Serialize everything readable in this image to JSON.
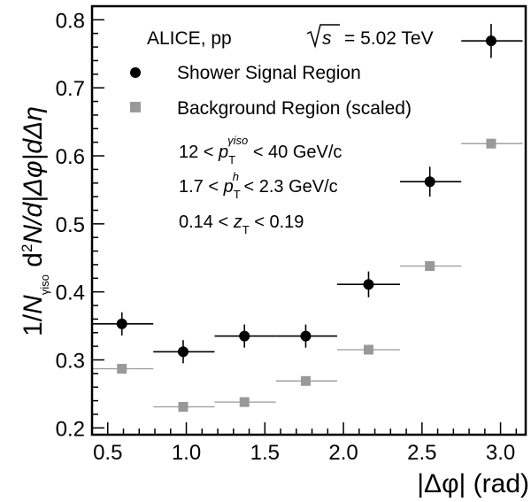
{
  "chart_data": {
    "type": "scatter",
    "header": {
      "experiment": "ALICE, pp",
      "energy_symbol": "s",
      "energy_value": "= 5.02 TeV"
    },
    "cuts": [
      {
        "low": "12 <",
        "var": "p",
        "sub": "T",
        "sup": "γiso",
        "high": "< 40 GeV/c"
      },
      {
        "low": "1.7 <",
        "var": "p",
        "sub": "T",
        "sup": "h",
        "high": "< 2.3 GeV/c"
      },
      {
        "low": "0.14 <",
        "var": "z",
        "sub": "T",
        "sup": "",
        "high": "< 0.19"
      }
    ],
    "xlabel": "|Δφ| (rad)",
    "ylabel": "1/N_γiso d²N/d|Δφ|dΔη",
    "ylabel_parts": {
      "pre": "1/",
      "n": "N",
      "n_sub": "γiso",
      "mid": " d",
      "sq": "2",
      "rest": "N/d|Δφ|dΔη"
    },
    "xlim": [
      0.4,
      3.16
    ],
    "ylim": [
      0.19,
      0.82
    ],
    "x_ticks": [
      "0.5",
      "1.0",
      "1.5",
      "2.0",
      "2.5",
      "3.0"
    ],
    "y_ticks": [
      "0.2",
      "0.3",
      "0.4",
      "0.5",
      "0.6",
      "0.7",
      "0.8"
    ],
    "series": [
      {
        "name": "Shower Signal Region",
        "marker": "circle",
        "color": "#000000",
        "points": [
          {
            "x": 0.59,
            "y": 0.353,
            "xlow": 0.4,
            "xhigh": 0.79,
            "yerr": 0.017
          },
          {
            "x": 0.98,
            "y": 0.312,
            "xlow": 0.79,
            "xhigh": 1.18,
            "yerr": 0.017
          },
          {
            "x": 1.37,
            "y": 0.335,
            "xlow": 1.18,
            "xhigh": 1.57,
            "yerr": 0.017
          },
          {
            "x": 1.76,
            "y": 0.335,
            "xlow": 1.57,
            "xhigh": 1.96,
            "yerr": 0.017
          },
          {
            "x": 2.16,
            "y": 0.411,
            "xlow": 1.96,
            "xhigh": 2.36,
            "yerr": 0.019
          },
          {
            "x": 2.55,
            "y": 0.562,
            "xlow": 2.36,
            "xhigh": 2.75,
            "yerr": 0.022
          },
          {
            "x": 2.94,
            "y": 0.769,
            "xlow": 2.75,
            "xhigh": 3.14,
            "yerr": 0.025
          }
        ]
      },
      {
        "name": "Background Region (scaled)",
        "marker": "square",
        "color": "#999999",
        "points": [
          {
            "x": 0.59,
            "y": 0.287,
            "xlow": 0.4,
            "xhigh": 0.79,
            "yerr": 0.005
          },
          {
            "x": 0.98,
            "y": 0.231,
            "xlow": 0.79,
            "xhigh": 1.18,
            "yerr": 0.005
          },
          {
            "x": 1.37,
            "y": 0.238,
            "xlow": 1.18,
            "xhigh": 1.57,
            "yerr": 0.005
          },
          {
            "x": 1.76,
            "y": 0.269,
            "xlow": 1.57,
            "xhigh": 1.96,
            "yerr": 0.005
          },
          {
            "x": 2.16,
            "y": 0.315,
            "xlow": 1.96,
            "xhigh": 2.36,
            "yerr": 0.005
          },
          {
            "x": 2.55,
            "y": 0.438,
            "xlow": 2.36,
            "xhigh": 2.75,
            "yerr": 0.006
          },
          {
            "x": 2.94,
            "y": 0.618,
            "xlow": 2.75,
            "xhigh": 3.14,
            "yerr": 0.007
          }
        ]
      }
    ],
    "legend_position": "top-right",
    "grid": false
  }
}
